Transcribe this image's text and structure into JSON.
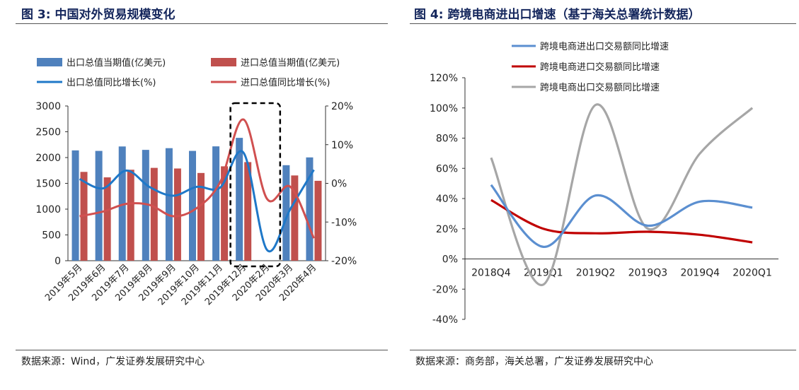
{
  "left": {
    "figure_title": "图 3:  中国对外贸易规模变化",
    "source": "数据来源：Wind，广发证券发展研究中心"
  },
  "right": {
    "figure_title": "图 4:  跨境电商进出口增速（基于海关总署统计数据）",
    "source": "数据来源：商务部，海关总署，广发证券发展研究中心"
  },
  "colors": {
    "title": "#14265c",
    "blue_bar": "#4f81bd",
    "red_bar": "#c0504d",
    "blue_line": "#1f78c8",
    "red_line": "#d05050",
    "dashed_box": "#000000",
    "r_blue": "#5b8fd0",
    "r_red": "#c00000",
    "r_gray": "#a6a6a6"
  },
  "chart_data": [
    {
      "type": "bar",
      "combo": "bar+line, dual axis",
      "categories": [
        "2019年5月",
        "2019年6月",
        "2019年7月",
        "2019年8月",
        "2019年9月",
        "2019年10月",
        "2019年11月",
        "2019年12月",
        "2020年2月",
        "2020年3月",
        "2020年4月"
      ],
      "series": [
        {
          "name": "出口总值当期值(亿美元)",
          "kind": "bar",
          "axis": "left",
          "values": [
            2139,
            2129,
            2215,
            2149,
            2182,
            2129,
            2217,
            2382,
            null,
            1852,
            2003
          ]
        },
        {
          "name": "进口总值当期值(亿美元)",
          "kind": "bar",
          "axis": "left",
          "values": [
            1722,
            1616,
            1764,
            1800,
            1788,
            1701,
            1830,
            1912,
            null,
            1653,
            1549
          ]
        },
        {
          "name": "出口总值同比增长(%)",
          "kind": "line",
          "axis": "right",
          "values": [
            1.1,
            -1.3,
            3.3,
            -1.0,
            -3.2,
            -0.9,
            -1.1,
            7.9,
            -17.2,
            -6.6,
            3.5
          ]
        },
        {
          "name": "进口总值同比增长(%)",
          "kind": "line",
          "axis": "right",
          "values": [
            -8.5,
            -7.3,
            -5.3,
            -5.6,
            -8.5,
            -6.4,
            0.3,
            16.5,
            -4.0,
            -0.9,
            -14.2
          ]
        }
      ],
      "y_left": {
        "ylim": [
          0,
          3000
        ],
        "ticks": [
          "0",
          "500",
          "1000",
          "1500",
          "2000",
          "2500",
          "3000"
        ]
      },
      "y_right": {
        "ylim": [
          -20,
          20
        ],
        "ticks": [
          "-20%",
          "-10%",
          "0%",
          "10%",
          "20%"
        ]
      },
      "highlight_box": {
        "categories": [
          "2019年12月",
          "2020年2月"
        ],
        "style": "dashed"
      },
      "legend_position": "top"
    },
    {
      "type": "line",
      "categories": [
        "2018Q4",
        "2019Q1",
        "2019Q2",
        "2019Q3",
        "2019Q4",
        "2020Q1"
      ],
      "series": [
        {
          "name": "跨境电商进出口交易额同比增速",
          "values": [
            49,
            8,
            42,
            22,
            38,
            34
          ]
        },
        {
          "name": "跨境电商进口交易额同比增速",
          "values": [
            39,
            20,
            17,
            18,
            16,
            11
          ]
        },
        {
          "name": "跨境电商出口交易额同比增速",
          "values": [
            67,
            -17,
            102,
            20,
            70,
            100
          ]
        }
      ],
      "ylim": [
        -40,
        120
      ],
      "ticks": [
        "-40%",
        "-20%",
        "0%",
        "20%",
        "40%",
        "60%",
        "80%",
        "100%",
        "120%"
      ],
      "smooth": true,
      "legend_position": "top"
    }
  ]
}
